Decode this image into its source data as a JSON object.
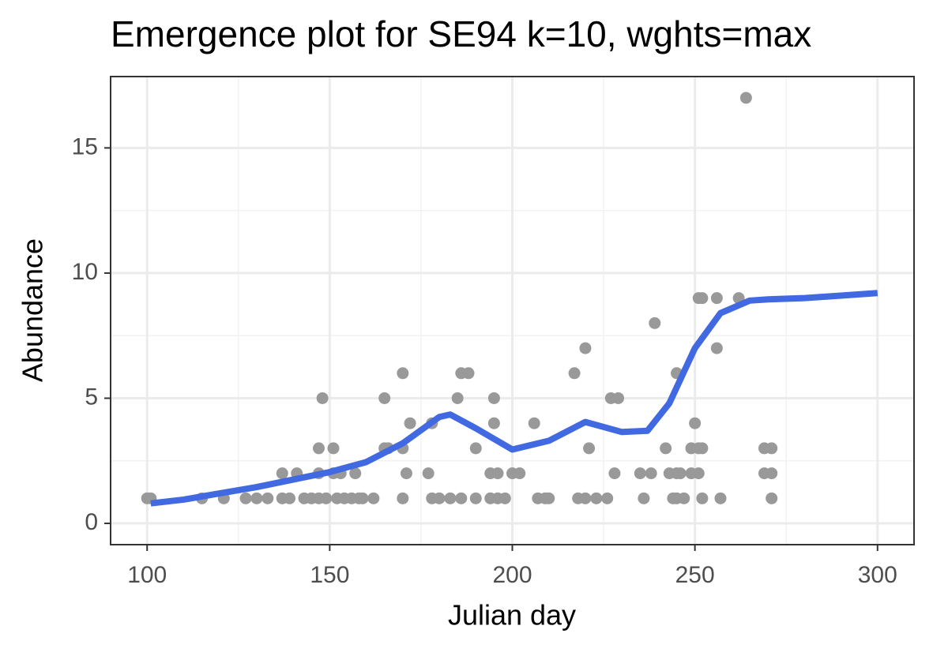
{
  "chart_data": {
    "type": "scatter",
    "title": "Emergence plot for SE94 k=10, wghts=max",
    "x_label": "Julian day",
    "y_label": "Abundance",
    "xlim": [
      90,
      310
    ],
    "ylim": [
      -0.85,
      17.85
    ],
    "xticks": [
      100,
      150,
      200,
      250,
      300
    ],
    "yticks": [
      0,
      5,
      10,
      15
    ],
    "xminor": [
      125,
      175,
      225,
      275
    ],
    "yminor": [
      2.5,
      7.5,
      12.5
    ],
    "grid": true,
    "series": [
      {
        "type": "scatter",
        "color": "#999999",
        "x": [
          100,
          101,
          115,
          121,
          127,
          130,
          133,
          137,
          139,
          143,
          145,
          147,
          149,
          152,
          154,
          156,
          158,
          159,
          162,
          170,
          178,
          180,
          183,
          186,
          190,
          194,
          196,
          198,
          207,
          209,
          210,
          218,
          220,
          223,
          226,
          236,
          244,
          245,
          247,
          252,
          257,
          271,
          137,
          141,
          147,
          151,
          153,
          157,
          171,
          177,
          194,
          196,
          200,
          202,
          228,
          235,
          238,
          243,
          245,
          246,
          249,
          251,
          269,
          271,
          147,
          151,
          165,
          166,
          170,
          190,
          221,
          242,
          249,
          251,
          252,
          269,
          271,
          172,
          178,
          195,
          206,
          250,
          148,
          165,
          185,
          195,
          227,
          229,
          170,
          186,
          188,
          217,
          245,
          220,
          256,
          239,
          251,
          252,
          256,
          262,
          264
        ],
        "values": [
          1,
          1,
          1,
          1,
          1,
          1,
          1,
          1,
          1,
          1,
          1,
          1,
          1,
          1,
          1,
          1,
          1,
          1,
          1,
          1,
          1,
          1,
          1,
          1,
          1,
          1,
          1,
          1,
          1,
          1,
          1,
          1,
          1,
          1,
          1,
          1,
          1,
          1,
          1,
          1,
          1,
          1,
          2,
          2,
          2,
          2,
          2,
          2,
          2,
          2,
          2,
          2,
          2,
          2,
          2,
          2,
          2,
          2,
          2,
          2,
          2,
          2,
          2,
          2,
          3,
          3,
          3,
          3,
          3,
          3,
          3,
          3,
          3,
          3,
          3,
          3,
          3,
          4,
          4,
          4,
          4,
          4,
          5,
          5,
          5,
          5,
          5,
          5,
          6,
          6,
          6,
          6,
          6,
          7,
          7,
          8,
          9,
          9,
          9,
          9,
          17
        ]
      },
      {
        "type": "line",
        "color": "#4169e1",
        "x": [
          101,
          110,
          120,
          130,
          140,
          150,
          160,
          170,
          180,
          183,
          190,
          200,
          210,
          220,
          230,
          237,
          243,
          250,
          257,
          265,
          270,
          280,
          290,
          300
        ],
        "values": [
          0.8,
          0.95,
          1.2,
          1.45,
          1.75,
          2.05,
          2.45,
          3.2,
          4.25,
          4.35,
          3.8,
          2.95,
          3.3,
          4.05,
          3.65,
          3.7,
          4.8,
          7.0,
          8.4,
          8.9,
          8.95,
          9.0,
          9.1,
          9.2
        ]
      }
    ]
  }
}
